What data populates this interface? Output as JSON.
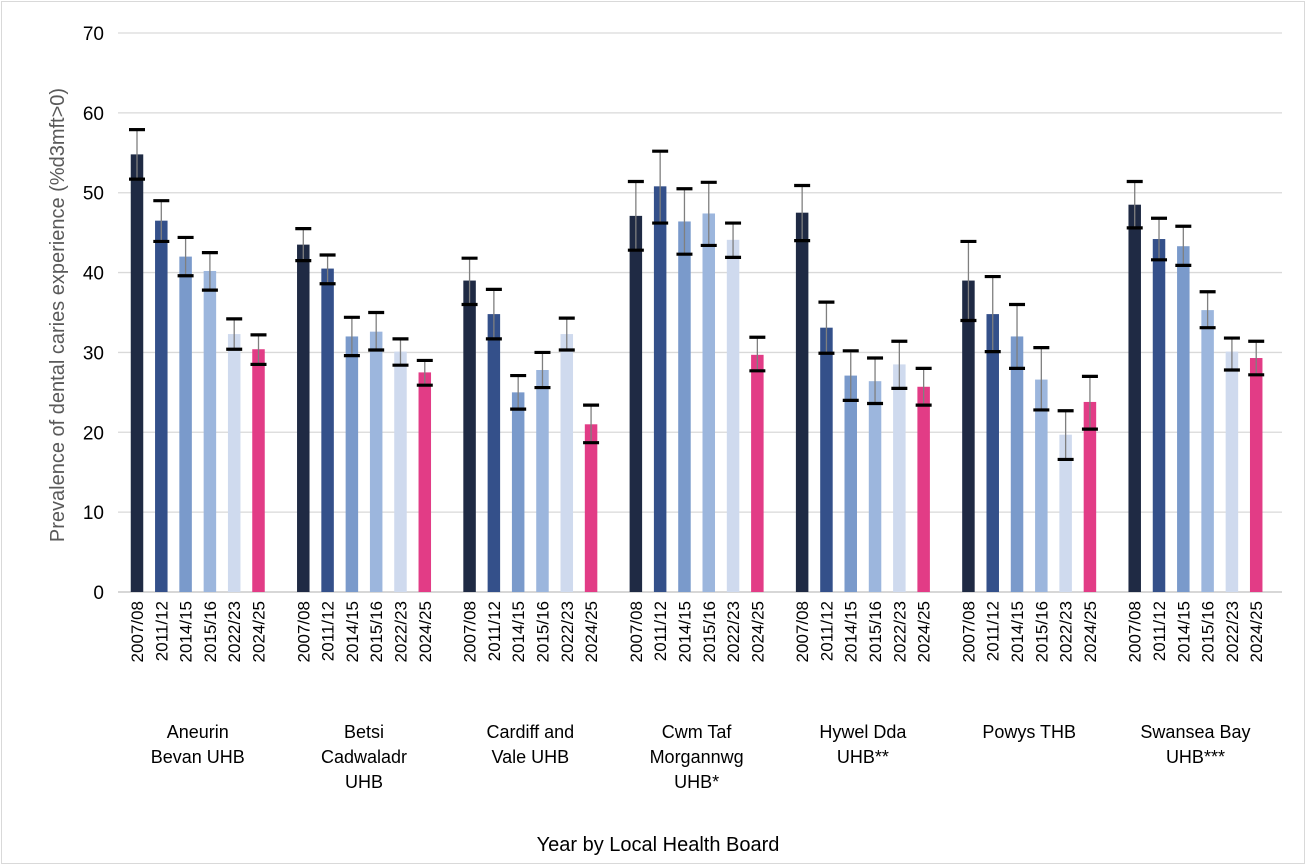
{
  "chart_data": {
    "type": "bar",
    "title": "",
    "xlabel": "Year by Local Health Board",
    "ylabel": "Prevalence of dental caries experience (%d3mft>0)",
    "ylim": [
      0,
      70
    ],
    "yticks": [
      0,
      10,
      20,
      30,
      40,
      50,
      60,
      70
    ],
    "grid": true,
    "legend": "none",
    "years": [
      "2007/08",
      "2011/12",
      "2014/15",
      "2015/16",
      "2022/23",
      "2024/25"
    ],
    "year_colors": [
      "#1f2a44",
      "#34508a",
      "#7a9acb",
      "#9cb6dd",
      "#cfdaee",
      "#e23c86"
    ],
    "groups": [
      {
        "label_lines": [
          "Aneurin",
          "Bevan UHB"
        ],
        "values": [
          54.8,
          46.5,
          42.0,
          40.2,
          32.3,
          30.4
        ],
        "ci_low": [
          51.7,
          43.9,
          39.6,
          37.8,
          30.4,
          28.5
        ],
        "ci_high": [
          57.9,
          49.0,
          44.4,
          42.5,
          34.2,
          32.2
        ]
      },
      {
        "label_lines": [
          "Betsi",
          "Cadwaladr",
          "UHB"
        ],
        "values": [
          43.5,
          40.5,
          32.0,
          32.6,
          30.1,
          27.5
        ],
        "ci_low": [
          41.5,
          38.6,
          29.6,
          30.3,
          28.4,
          25.9
        ],
        "ci_high": [
          45.5,
          42.2,
          34.4,
          35.0,
          31.7,
          29.0
        ]
      },
      {
        "label_lines": [
          "Cardiff and",
          "Vale UHB"
        ],
        "values": [
          39.0,
          34.8,
          25.0,
          27.8,
          32.3,
          21.0
        ],
        "ci_low": [
          36.0,
          31.7,
          22.9,
          25.6,
          30.3,
          18.7
        ],
        "ci_high": [
          41.8,
          37.9,
          27.1,
          30.0,
          34.3,
          23.4
        ]
      },
      {
        "label_lines": [
          "Cwm Taf",
          "Morgannwg",
          "UHB*"
        ],
        "values": [
          47.1,
          50.8,
          46.4,
          47.4,
          44.1,
          29.7
        ],
        "ci_low": [
          42.8,
          46.2,
          42.3,
          43.4,
          41.9,
          27.7
        ],
        "ci_high": [
          51.4,
          55.2,
          50.5,
          51.3,
          46.2,
          31.9
        ]
      },
      {
        "label_lines": [
          "Hywel Dda",
          "UHB**"
        ],
        "values": [
          47.5,
          33.1,
          27.1,
          26.4,
          28.5,
          25.7
        ],
        "ci_low": [
          44.0,
          29.9,
          24.0,
          23.6,
          25.5,
          23.4
        ],
        "ci_high": [
          50.9,
          36.3,
          30.2,
          29.3,
          31.4,
          28.0
        ]
      },
      {
        "label_lines": [
          "Powys THB"
        ],
        "values": [
          39.0,
          34.8,
          32.0,
          26.6,
          19.7,
          23.8
        ],
        "ci_low": [
          34.0,
          30.1,
          28.0,
          22.8,
          16.6,
          20.4
        ],
        "ci_high": [
          43.9,
          39.5,
          36.0,
          30.6,
          22.7,
          27.0
        ]
      },
      {
        "label_lines": [
          "Swansea Bay",
          "UHB***"
        ],
        "values": [
          48.5,
          44.2,
          43.3,
          35.3,
          30.1,
          29.3
        ],
        "ci_low": [
          45.6,
          41.6,
          40.9,
          33.1,
          27.8,
          27.2
        ],
        "ci_high": [
          51.4,
          46.8,
          45.8,
          37.6,
          31.8,
          31.4
        ]
      }
    ]
  }
}
